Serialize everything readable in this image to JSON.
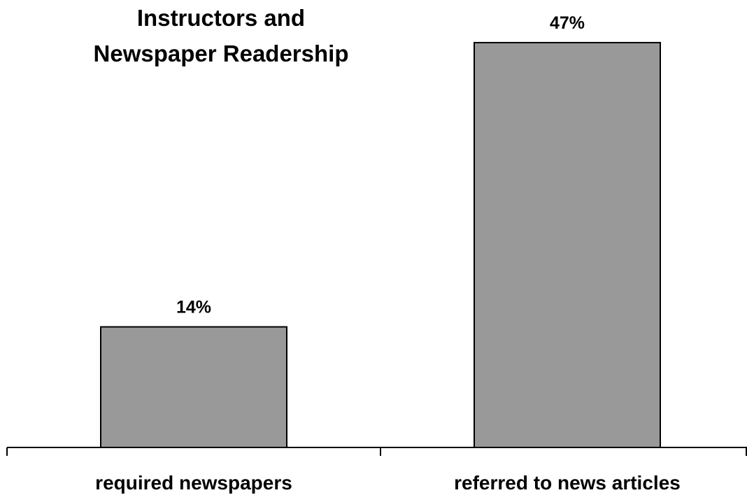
{
  "chart_data": {
    "type": "bar",
    "title_lines": [
      "Instructors and",
      "Newspaper Readership"
    ],
    "categories": [
      "required newspapers",
      "referred to news articles"
    ],
    "values": [
      14,
      47
    ],
    "value_labels": [
      "14%",
      "47%"
    ],
    "xlabel": "",
    "ylabel": "",
    "ylim": [
      0,
      50
    ],
    "grid": false,
    "legend": "none",
    "bar_color": "#999999",
    "bar_edge_color": "#000000"
  }
}
